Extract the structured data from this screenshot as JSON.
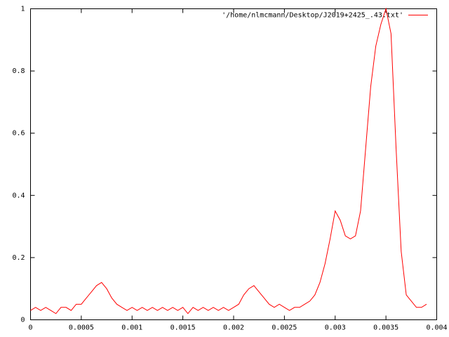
{
  "chart_data": {
    "type": "line",
    "x": [
      0,
      5e-05,
      0.0001,
      0.00015,
      0.0002,
      0.00025,
      0.0003,
      0.00035,
      0.0004,
      0.00045,
      0.0005,
      0.00055,
      0.0006,
      0.00065,
      0.0007,
      0.00075,
      0.0008,
      0.00085,
      0.0009,
      0.00095,
      0.001,
      0.00105,
      0.0011,
      0.00115,
      0.0012,
      0.00125,
      0.0013,
      0.00135,
      0.0014,
      0.00145,
      0.0015,
      0.00155,
      0.0016,
      0.00165,
      0.0017,
      0.00175,
      0.0018,
      0.00185,
      0.0019,
      0.00195,
      0.002,
      0.00205,
      0.0021,
      0.00215,
      0.0022,
      0.00225,
      0.0023,
      0.00235,
      0.0024,
      0.00245,
      0.0025,
      0.00255,
      0.0026,
      0.00265,
      0.0027,
      0.00275,
      0.0028,
      0.00285,
      0.0029,
      0.00295,
      0.003,
      0.00305,
      0.0031,
      0.00315,
      0.0032,
      0.00325,
      0.0033,
      0.00335,
      0.0034,
      0.00345,
      0.0035,
      0.00355,
      0.0036,
      0.00365,
      0.0037,
      0.00375,
      0.0038,
      0.00385,
      0.0039
    ],
    "series": [
      {
        "name": "'/home/nlmcmann/Desktop/J2019+2425_.43.txt'",
        "color": "#ff0000",
        "values": [
          0.03,
          0.04,
          0.03,
          0.04,
          0.03,
          0.02,
          0.04,
          0.04,
          0.03,
          0.05,
          0.05,
          0.07,
          0.09,
          0.11,
          0.12,
          0.1,
          0.07,
          0.05,
          0.04,
          0.03,
          0.04,
          0.03,
          0.04,
          0.03,
          0.04,
          0.03,
          0.04,
          0.03,
          0.04,
          0.03,
          0.04,
          0.02,
          0.04,
          0.03,
          0.04,
          0.03,
          0.04,
          0.03,
          0.04,
          0.03,
          0.04,
          0.05,
          0.08,
          0.1,
          0.11,
          0.09,
          0.07,
          0.05,
          0.04,
          0.05,
          0.04,
          0.03,
          0.04,
          0.04,
          0.05,
          0.06,
          0.08,
          0.12,
          0.18,
          0.26,
          0.35,
          0.32,
          0.27,
          0.26,
          0.27,
          0.35,
          0.55,
          0.75,
          0.88,
          0.95,
          1.0,
          0.92,
          0.55,
          0.22,
          0.08,
          0.06,
          0.04,
          0.04,
          0.05
        ]
      }
    ],
    "xlim": [
      0,
      0.004
    ],
    "xticks": [
      0,
      0.0005,
      0.001,
      0.0015,
      0.002,
      0.0025,
      0.003,
      0.0035,
      0.004
    ],
    "ylim": [
      0,
      1
    ],
    "yticks": [
      0,
      0.2,
      0.4,
      0.6,
      0.8,
      1
    ],
    "legend": "top-right"
  }
}
